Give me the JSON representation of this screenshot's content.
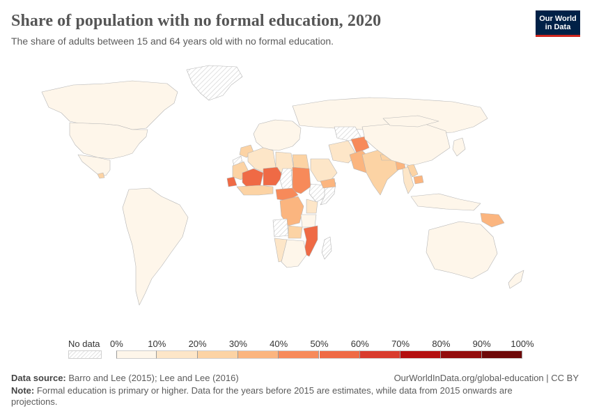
{
  "header": {
    "title": "Share of population with no formal education, 2020",
    "subtitle": "The share of adults between 15 and 64 years old with no formal education."
  },
  "logo": {
    "line1": "Our World",
    "line2": "in Data",
    "bg": "#002147",
    "accent": "#ce261e"
  },
  "legend": {
    "no_data_label": "No data",
    "ticks": [
      "0%",
      "10%",
      "20%",
      "30%",
      "40%",
      "50%",
      "60%",
      "70%",
      "80%",
      "90%",
      "100%"
    ],
    "colors": [
      "#fef6ea",
      "#fde6c8",
      "#fcd3a4",
      "#fbb57f",
      "#f78a5a",
      "#ef6a45",
      "#d93b2d",
      "#b40f0f",
      "#930c0c",
      "#6e0808"
    ]
  },
  "footer": {
    "source_label": "Data source:",
    "source_text": "Barro and Lee (2015); Lee and Lee (2016)",
    "url": "OurWorldInData.org/global-education | CC BY",
    "note_label": "Note:",
    "note_text": "Formal education is primary or higher. Data for the years before 2015 are estimates, while data from 2015 onwards are projections."
  },
  "map": {
    "no_data_pattern": "hatched-grey",
    "border_color": "#b5b5b5",
    "regions": [
      {
        "name": "Greenland",
        "bin": "no-data"
      },
      {
        "name": "Canada",
        "bin": 0
      },
      {
        "name": "United States",
        "bin": 0
      },
      {
        "name": "Mexico",
        "bin": 0
      },
      {
        "name": "Guatemala",
        "bin": 2
      },
      {
        "name": "South America",
        "bin": 0
      },
      {
        "name": "Europe",
        "bin": 0
      },
      {
        "name": "Russia",
        "bin": 0
      },
      {
        "name": "Morocco",
        "bin": 2
      },
      {
        "name": "Algeria",
        "bin": 1
      },
      {
        "name": "Libya",
        "bin": 1
      },
      {
        "name": "Egypt",
        "bin": 2
      },
      {
        "name": "Western Sahara",
        "bin": "no-data"
      },
      {
        "name": "Mauritania",
        "bin": 2
      },
      {
        "name": "Mali",
        "bin": 5
      },
      {
        "name": "Niger",
        "bin": 5
      },
      {
        "name": "Senegal",
        "bin": 5
      },
      {
        "name": "Chad",
        "bin": "no-data"
      },
      {
        "name": "Sudan",
        "bin": 4
      },
      {
        "name": "Ethiopia",
        "bin": "no-data"
      },
      {
        "name": "Somalia",
        "bin": "no-data"
      },
      {
        "name": "West African coast",
        "bin": 2
      },
      {
        "name": "Central African Republic",
        "bin": 4
      },
      {
        "name": "DR Congo",
        "bin": 3
      },
      {
        "name": "Kenya",
        "bin": 1
      },
      {
        "name": "Tanzania",
        "bin": 0
      },
      {
        "name": "Angola",
        "bin": "no-data"
      },
      {
        "name": "Zambia",
        "bin": 2
      },
      {
        "name": "Mozambique",
        "bin": 5
      },
      {
        "name": "Namibia",
        "bin": 1
      },
      {
        "name": "Southern Africa",
        "bin": 0
      },
      {
        "name": "Madagascar",
        "bin": "no-data"
      },
      {
        "name": "Saudi Arabia",
        "bin": 1
      },
      {
        "name": "Yemen",
        "bin": 3
      },
      {
        "name": "Iran",
        "bin": 1
      },
      {
        "name": "Turkmenistan",
        "bin": "no-data"
      },
      {
        "name": "Afghanistan",
        "bin": 4
      },
      {
        "name": "Pakistan",
        "bin": 3
      },
      {
        "name": "India",
        "bin": 2
      },
      {
        "name": "Nepal",
        "bin": 2
      },
      {
        "name": "Bangladesh",
        "bin": 3
      },
      {
        "name": "China",
        "bin": 0
      },
      {
        "name": "Mongolia",
        "bin": 0
      },
      {
        "name": "Laos",
        "bin": 2
      },
      {
        "name": "Cambodia",
        "bin": 3
      },
      {
        "name": "Thailand",
        "bin": 1
      },
      {
        "name": "Indonesia",
        "bin": 0
      },
      {
        "name": "Papua New Guinea",
        "bin": 3
      },
      {
        "name": "Australia",
        "bin": 0
      },
      {
        "name": "New Zealand",
        "bin": 0
      },
      {
        "name": "Japan",
        "bin": 0
      }
    ]
  }
}
